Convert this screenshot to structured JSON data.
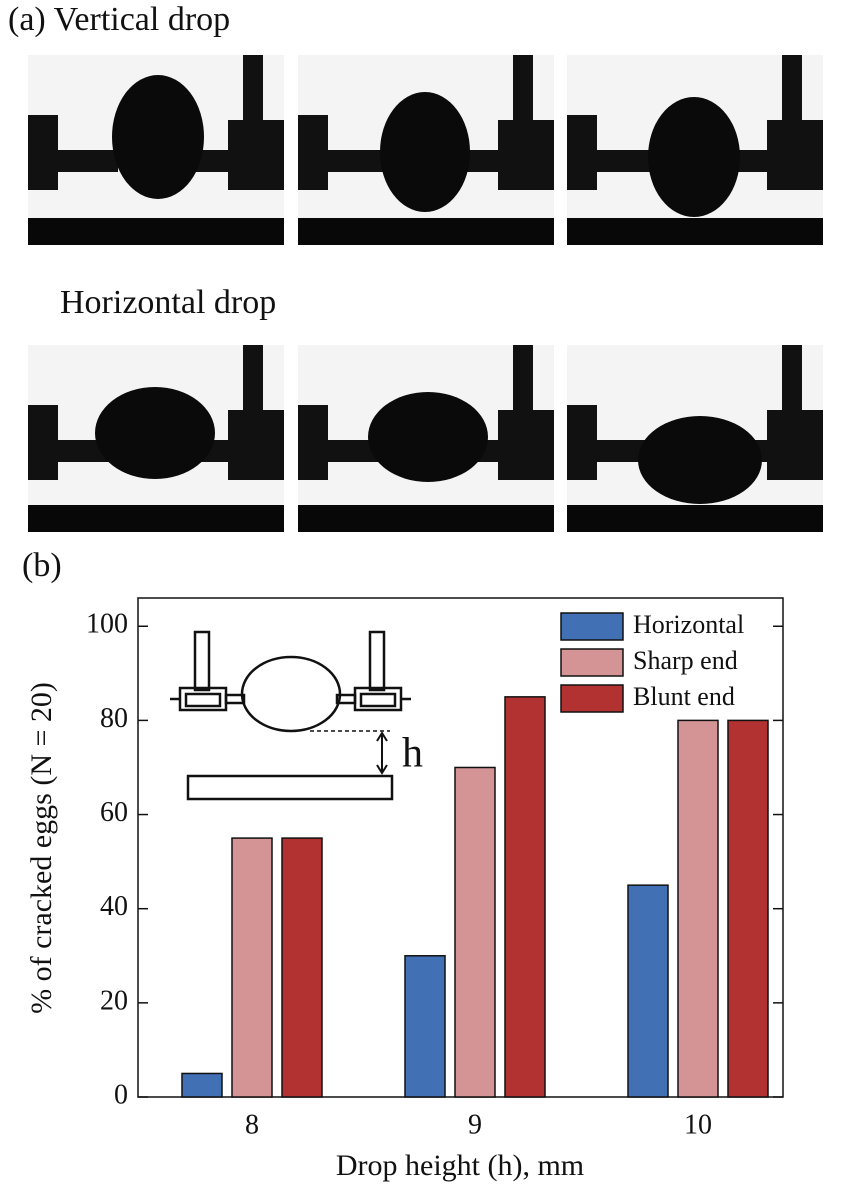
{
  "figure": {
    "label_a": "(a) Vertical drop",
    "row2_title": "Horizontal drop",
    "label_b": "(b)"
  },
  "chart_data": {
    "type": "bar",
    "categories": [
      "8",
      "9",
      "10"
    ],
    "series": [
      {
        "name": "Horizontal",
        "color": "#4270b4",
        "values": [
          5,
          30,
          45
        ]
      },
      {
        "name": "Sharp end",
        "color": "#d49395",
        "values": [
          55,
          70,
          80
        ]
      },
      {
        "name": "Blunt end",
        "color": "#b23232",
        "values": [
          55,
          85,
          80
        ]
      }
    ],
    "xlabel": "Drop height (h), mm",
    "ylabel": "% of cracked eggs (N = 20)",
    "ylim": [
      0,
      106
    ],
    "yticks": [
      0,
      20,
      40,
      60,
      80,
      100
    ],
    "legend": "upper right",
    "inset_label": "h"
  }
}
